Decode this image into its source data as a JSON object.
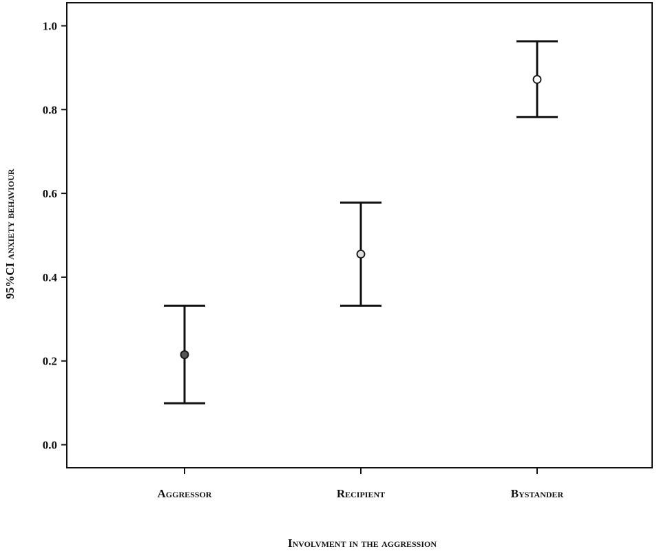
{
  "chart_data": {
    "type": "errorbar",
    "categories": [
      "Aggressor",
      "Recipient",
      "Bystander"
    ],
    "values": [
      0.215,
      0.455,
      0.872
    ],
    "ci_lower": [
      0.099,
      0.332,
      0.782
    ],
    "ci_upper": [
      0.332,
      0.578,
      0.963
    ],
    "marker_colors": [
      "#555555",
      "#dddddd",
      "#ffffff"
    ],
    "xlabel": "Involvment in the aggression",
    "ylabel": "95%CI anxiety behaviour",
    "ylim": [
      -0.055,
      1.055
    ],
    "yticks": [
      "0.0",
      "0.2",
      "0.4",
      "0.6",
      "0.8",
      "1.0"
    ],
    "grid": false,
    "legend": "none"
  }
}
